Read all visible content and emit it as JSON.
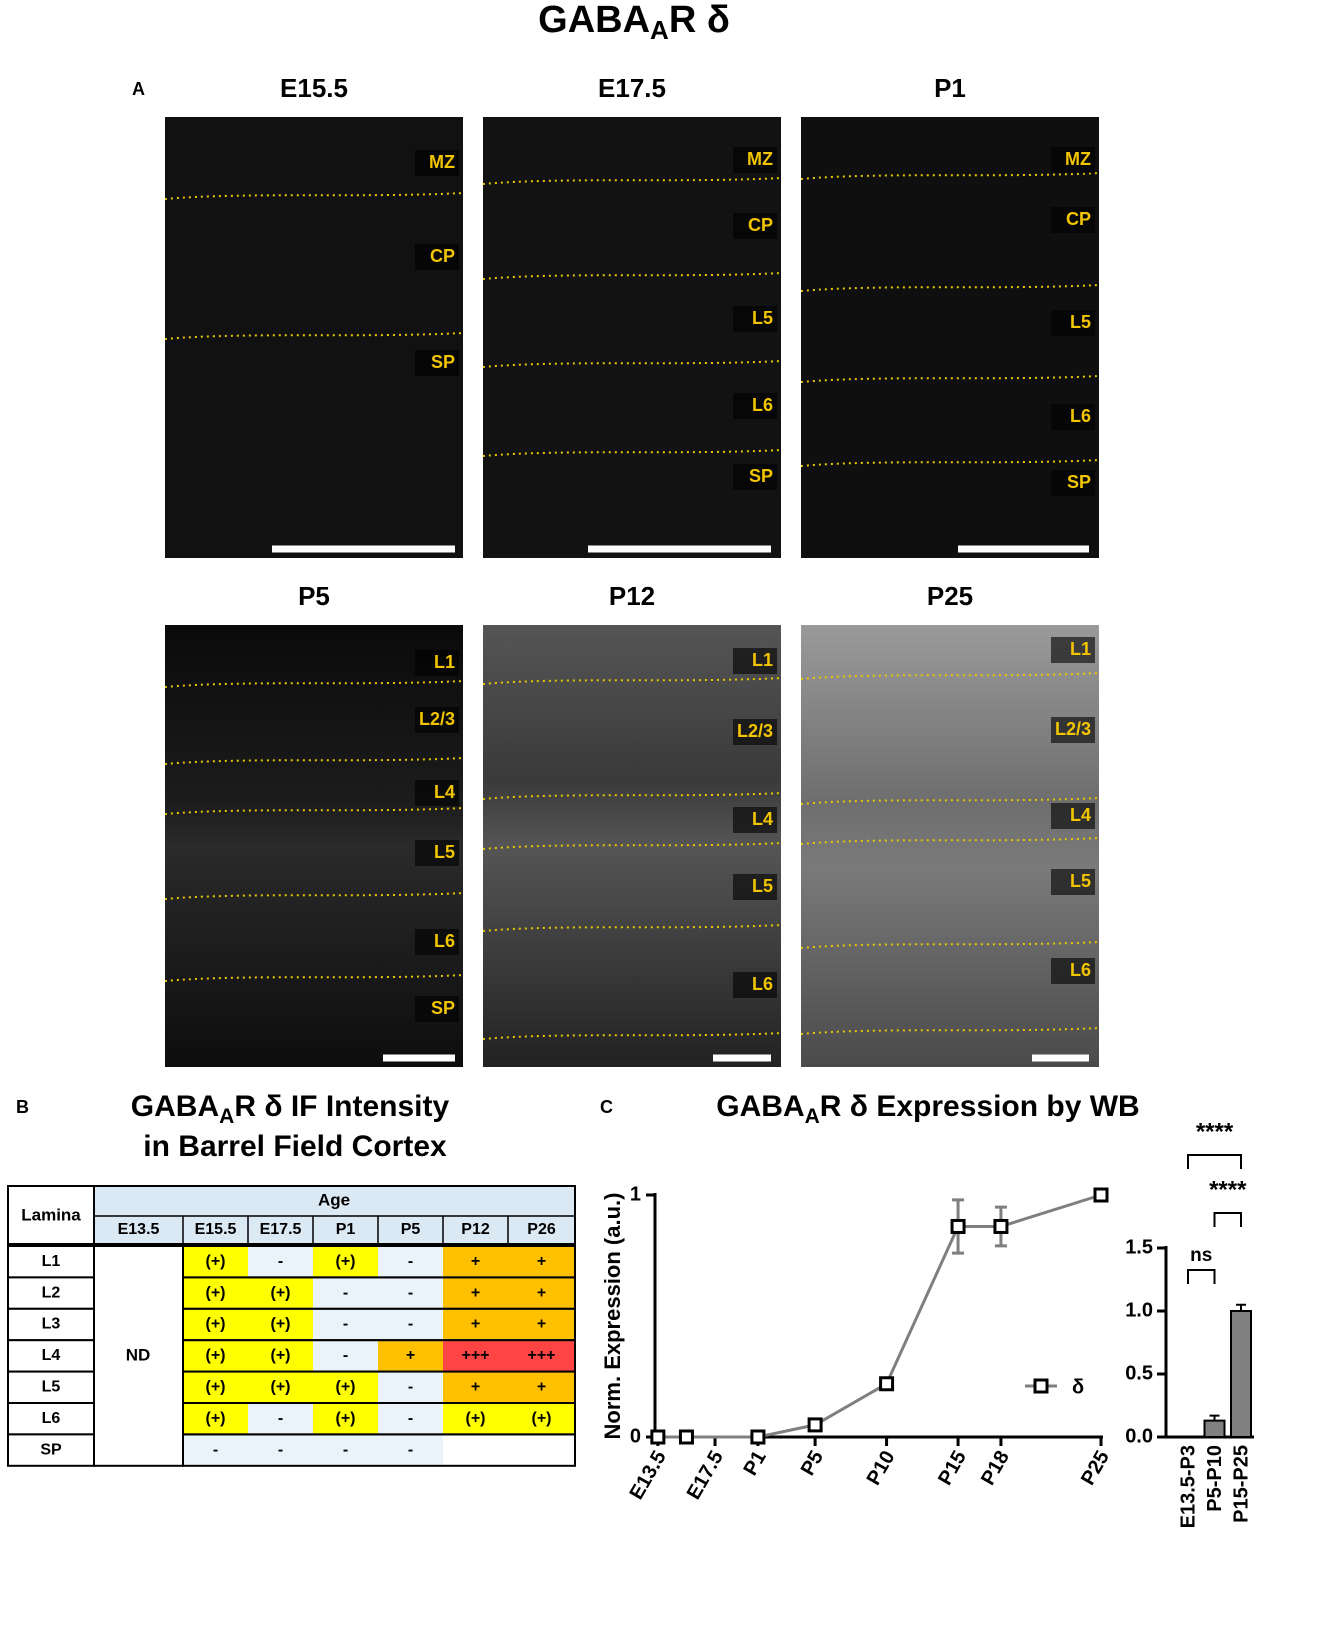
{
  "title": {
    "main": "GABA",
    "sub": "A",
    "rest": "R δ"
  },
  "panel_a": {
    "label": "A",
    "panels": [
      {
        "age": "E15.5",
        "layers": [
          "MZ",
          "CP",
          "SP"
        ]
      },
      {
        "age": "E17.5",
        "layers": [
          "MZ",
          "CP",
          "L5",
          "L6",
          "SP"
        ]
      },
      {
        "age": "P1",
        "layers": [
          "MZ",
          "CP",
          "L5",
          "L6",
          "SP"
        ]
      },
      {
        "age": "P5",
        "layers": [
          "L1",
          "L2/3",
          "L4",
          "L5",
          "L6",
          "SP"
        ]
      },
      {
        "age": "P12",
        "layers": [
          "L1",
          "L2/3",
          "L4",
          "L5",
          "L6"
        ]
      },
      {
        "age": "P25",
        "layers": [
          "L1",
          "L2/3",
          "L4",
          "L5",
          "L6"
        ]
      }
    ]
  },
  "panel_b": {
    "label": "B",
    "title": {
      "main": "GABA",
      "sub": "A",
      "rest": "R δ IF Intensity",
      "line2": "in Barrel Field Cortex"
    },
    "table": {
      "corner": "Lamina",
      "group": "Age",
      "ages": [
        "E13.5",
        "E15.5",
        "E17.5",
        "P1",
        "P5",
        "P12",
        "P26"
      ],
      "merged": "ND",
      "cell_colors": {
        "(+)": "#ffff00",
        "-": "#eaf3fa",
        "+": "#ffc000",
        "+++": "#ff4444"
      },
      "rows": [
        {
          "lamina": "L1",
          "cells": [
            "(+)",
            "-",
            "(+)",
            "-",
            "+",
            "+"
          ]
        },
        {
          "lamina": "L2",
          "cells": [
            "(+)",
            "(+)",
            "-",
            "-",
            "+",
            "+"
          ]
        },
        {
          "lamina": "L3",
          "cells": [
            "(+)",
            "(+)",
            "-",
            "-",
            "+",
            "+"
          ]
        },
        {
          "lamina": "L4",
          "cells": [
            "(+)",
            "(+)",
            "-",
            "+",
            "+++",
            "+++"
          ]
        },
        {
          "lamina": "L5",
          "cells": [
            "(+)",
            "(+)",
            "(+)",
            "-",
            "+",
            "+"
          ]
        },
        {
          "lamina": "L6",
          "cells": [
            "(+)",
            "-",
            "(+)",
            "-",
            "(+)",
            "(+)"
          ]
        },
        {
          "lamina": "SP",
          "cells": [
            "-",
            "-",
            "-",
            "-",
            null,
            null
          ]
        }
      ]
    }
  },
  "panel_c": {
    "label": "C",
    "title": {
      "main": "GABA",
      "sub": "A",
      "rest": "R δ Expression by WB"
    },
    "chart_data": [
      {
        "type": "line",
        "y_label": "Norm. Expression (a.u.)",
        "x": [
          -6,
          -4,
          1,
          5,
          10,
          15,
          18,
          25
        ],
        "xlim": [
          -6.2,
          25
        ],
        "xticks": [
          {
            "value": -6,
            "label": "E13.5"
          },
          {
            "value": -2,
            "label": "E17.5"
          },
          {
            "value": 1,
            "label": "P1"
          },
          {
            "value": 5,
            "label": "P5"
          },
          {
            "value": 10,
            "label": "P10"
          },
          {
            "value": 15,
            "label": "P15"
          },
          {
            "value": 18,
            "label": "P18"
          },
          {
            "value": 25,
            "label": "P25"
          }
        ],
        "ylim": [
          0,
          1
        ],
        "yticks": [
          0,
          1
        ],
        "series": [
          {
            "name": "δ",
            "color": "#7f7f7f",
            "values": [
              0,
              0,
              0,
              0.05,
              0.22,
              0.87,
              0.87,
              1
            ],
            "errors": [
              0,
              0,
              0,
              0.01,
              0.01,
              0.11,
              0.08,
              0
            ]
          }
        ]
      },
      {
        "type": "bar",
        "categories": [
          "E13.5-P3",
          "P5-P10",
          "P15-P25"
        ],
        "values": [
          0,
          0.13,
          1.0
        ],
        "errors": [
          0,
          0.04,
          0.05
        ],
        "color": "#808080",
        "ylim": [
          0,
          1.5
        ],
        "yticks": [
          {
            "value": 0,
            "label": "0.0"
          },
          {
            "value": 0.5,
            "label": "0.5"
          },
          {
            "value": 1,
            "label": "1.0"
          },
          {
            "value": 1.5,
            "label": "1.5"
          }
        ],
        "annotations": [
          "ns",
          "****",
          "****"
        ]
      }
    ]
  }
}
